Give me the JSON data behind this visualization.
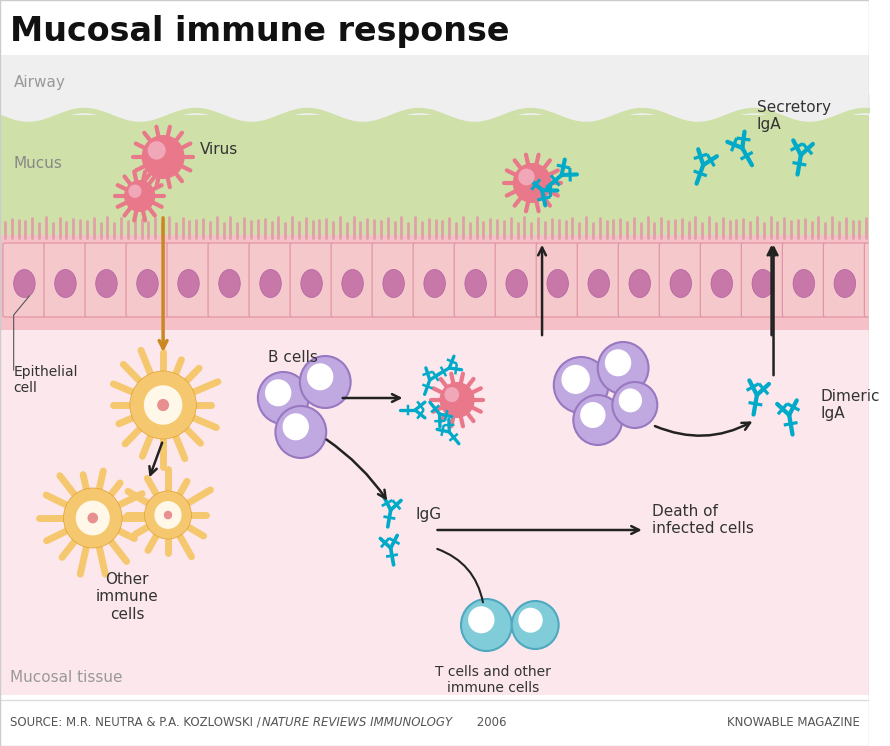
{
  "title": "Mucosal immune response",
  "source_text": "SOURCE: M.R. NEUTRA & P.A. KOZLOWSKI / ",
  "source_italic": "NATURE REVIEWS IMMUNOLOGY",
  "source_year": " 2006",
  "credit_text": "KNOWABLE MAGAZINE",
  "bg_white": "#ffffff",
  "bg_airway": "#efefef",
  "bg_mucus": "#cfe0a8",
  "bg_epithelial_cilia": "#f0b8c0",
  "bg_epithelial": "#f5c8cc",
  "bg_mucosal": "#fce8ec",
  "color_virus": "#e8788a",
  "color_bcell_fill": "#c0a8e0",
  "color_bcell_edge": "#9878c0",
  "color_tcell_fill": "#80ccd8",
  "color_tcell_edge": "#50a8c0",
  "color_dendritic": "#f5c870",
  "color_dendritic_edge": "#e0a030",
  "color_antibody": "#00aac8",
  "color_arrow": "#222222",
  "color_orange_arrow": "#cc8820",
  "label_airway": "Airway",
  "label_mucus": "Mucus",
  "label_epithelial": "Epithelial\ncell",
  "label_bcells": "B cells",
  "label_igg": "IgG",
  "label_secretory": "Secretory\nIgA",
  "label_dimeric": "Dimeric\nIgA",
  "label_tcells": "T cells and other\nimmune cells",
  "label_death": "Death of\ninfected cells",
  "label_other": "Other\nimmune\ncells",
  "label_mucosal": "Mucosal tissue",
  "label_virus": "Virus"
}
